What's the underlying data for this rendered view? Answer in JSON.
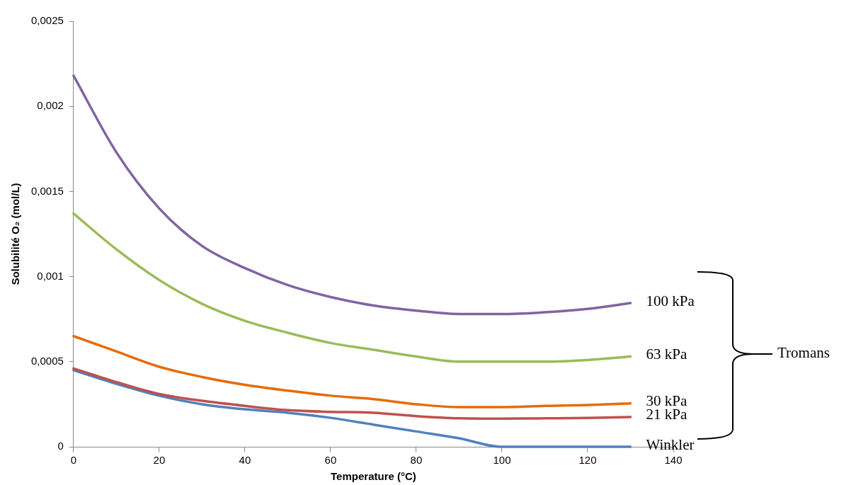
{
  "chart_data": {
    "type": "line",
    "xlabel": "Temperature (°C)",
    "ylabel": "Solubilité O₂ (mol/L)",
    "x": [
      0,
      10,
      20,
      30,
      40,
      50,
      60,
      70,
      80,
      90,
      100,
      110,
      120,
      130
    ],
    "series": [
      {
        "name": "100 kPa",
        "color": "#8064a2",
        "values": [
          0.00218,
          0.00173,
          0.0014,
          0.00118,
          0.00105,
          0.00095,
          0.00088,
          0.00083,
          0.0008,
          0.00078,
          0.00078,
          0.00079,
          0.00081,
          0.000844
        ]
      },
      {
        "name": "63 kPa",
        "color": "#9bbb59",
        "values": [
          0.00137,
          0.00116,
          0.00098,
          0.00084,
          0.00074,
          0.00067,
          0.00061,
          0.00057,
          0.00053,
          0.0005,
          0.0005,
          0.0005,
          0.00051,
          0.00053
        ]
      },
      {
        "name": "30 kPa",
        "color": "#e46c0a",
        "values": [
          0.00065,
          0.00056,
          0.00047,
          0.00041,
          0.000364,
          0.00033,
          0.0003,
          0.00028,
          0.00025,
          0.000233,
          0.000233,
          0.00024,
          0.000245,
          0.000255
        ]
      },
      {
        "name": "21 kPa",
        "color": "#c0504d",
        "values": [
          0.00046,
          0.00038,
          0.00031,
          0.00027,
          0.00024,
          0.000215,
          0.000205,
          0.0002,
          0.00018,
          0.000167,
          0.000165,
          0.000167,
          0.00017,
          0.000175
        ]
      },
      {
        "name": "Winkler",
        "color": "#4f81bd",
        "values": [
          0.00045,
          0.00037,
          0.0003,
          0.00025,
          0.00022,
          0.0002,
          0.00017,
          0.00013,
          9e-05,
          5e-05,
          0,
          0,
          0,
          0
        ]
      }
    ],
    "xlim": [
      0,
      140
    ],
    "xticks": [
      0,
      20,
      40,
      60,
      80,
      100,
      120,
      140
    ],
    "ylim": [
      0,
      0.0025
    ],
    "yticks": [
      {
        "value": 0,
        "label": "0"
      },
      {
        "value": 0.0005,
        "label": "0,0005"
      },
      {
        "value": 0.001,
        "label": "0,001"
      },
      {
        "value": 0.0015,
        "label": "0,0015"
      },
      {
        "value": 0.002,
        "label": "0,002"
      },
      {
        "value": 0.0025,
        "label": "0,0025"
      }
    ],
    "grid": false,
    "legend": false,
    "marker": "none",
    "line_style": "solid",
    "annotations": [
      "Tromans"
    ]
  }
}
